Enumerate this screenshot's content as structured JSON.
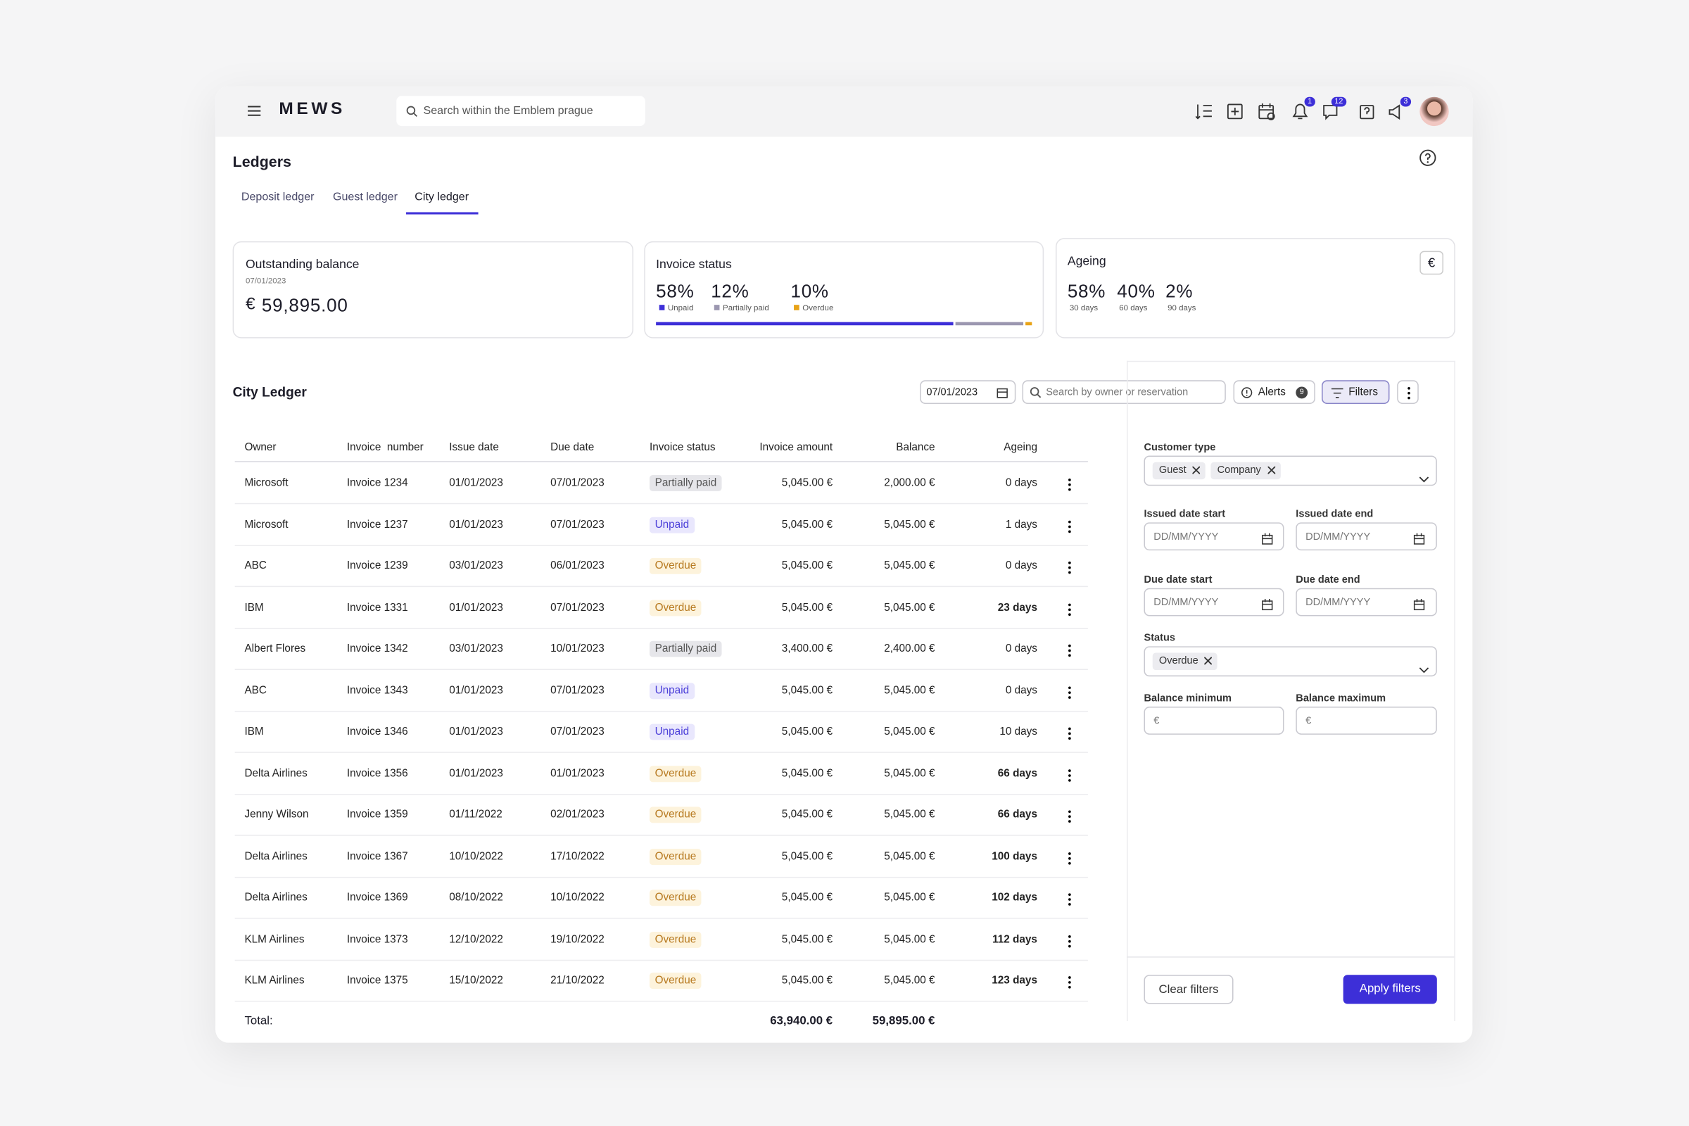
{
  "header": {
    "logo": "MEWS",
    "search_placeholder": "Search within the Emblem prague",
    "badges": [
      "1",
      "12",
      "3"
    ]
  },
  "page": {
    "title": "Ledgers",
    "tabs": [
      "Deposit ledger",
      "Guest ledger",
      "City ledger"
    ]
  },
  "cards": {
    "outstanding": {
      "title": "Outstanding balance",
      "date": "07/01/2023",
      "currency": "€",
      "amount": "59,895.00"
    },
    "invoice_status": {
      "title": "Invoice status",
      "stats": [
        {
          "value": "58%",
          "label": "Unpaid"
        },
        {
          "value": "12%",
          "label": "Partially paid"
        },
        {
          "value": "10%",
          "label": "Overdue"
        }
      ]
    },
    "ageing": {
      "title": "Ageing",
      "stats": [
        {
          "value": "58%",
          "label": "30 days"
        },
        {
          "value": "40%",
          "label": "60 days"
        },
        {
          "value": "2%",
          "label": "90 days"
        }
      ]
    }
  },
  "ledger": {
    "title": "City Ledger",
    "date": "07/01/2023",
    "search_placeholder": "Search by owner or reservation",
    "alerts": "Alerts",
    "alerts_count": "9",
    "filters": "Filters",
    "table": {
      "columns": [
        "Owner",
        "Invoice  number",
        "Issue date",
        "Due date",
        "Invoice status",
        "Invoice amount",
        "Balance",
        "Ageing"
      ],
      "rows": [
        [
          "Microsoft",
          "Invoice 1234",
          "01/01/2023",
          "07/01/2023",
          "Partially paid",
          "5,045.00 €",
          "2,000.00 €",
          "0 days"
        ],
        [
          "Microsoft",
          "Invoice 1237",
          "01/01/2023",
          "07/01/2023",
          "Unpaid",
          "5,045.00 €",
          "5,045.00 €",
          "1 days"
        ],
        [
          "ABC",
          "Invoice 1239",
          "03/01/2023",
          "06/01/2023",
          "Overdue",
          "5,045.00 €",
          "5,045.00 €",
          "0 days"
        ],
        [
          "IBM",
          "Invoice 1331",
          "01/01/2023",
          "07/01/2023",
          "Overdue",
          "5,045.00 €",
          "5,045.00 €",
          "23 days"
        ],
        [
          "Albert Flores",
          "Invoice 1342",
          "03/01/2023",
          "10/01/2023",
          "Partially paid",
          "3,400.00 €",
          "2,400.00 €",
          "0 days"
        ],
        [
          "ABC",
          "Invoice 1343",
          "01/01/2023",
          "07/01/2023",
          "Unpaid",
          "5,045.00 €",
          "5,045.00 €",
          "0 days"
        ],
        [
          "IBM",
          "Invoice 1346",
          "01/01/2023",
          "07/01/2023",
          "Unpaid",
          "5,045.00 €",
          "5,045.00 €",
          "10 days"
        ],
        [
          "Delta Airlines",
          "Invoice 1356",
          "01/01/2023",
          "01/01/2023",
          "Overdue",
          "5,045.00 €",
          "5,045.00 €",
          "66 days"
        ],
        [
          "Jenny Wilson",
          "Invoice 1359",
          "01/11/2022",
          "02/01/2023",
          "Overdue",
          "5,045.00 €",
          "5,045.00 €",
          "66 days"
        ],
        [
          "Delta Airlines",
          "Invoice 1367",
          "10/10/2022",
          "17/10/2022",
          "Overdue",
          "5,045.00 €",
          "5,045.00 €",
          "100 days"
        ],
        [
          "Delta Airlines",
          "Invoice 1369",
          "08/10/2022",
          "10/10/2022",
          "Overdue",
          "5,045.00 €",
          "5,045.00 €",
          "102 days"
        ],
        [
          "KLM Airlines",
          "Invoice 1373",
          "12/10/2022",
          "19/10/2022",
          "Overdue",
          "5,045.00 €",
          "5,045.00 €",
          "112 days"
        ],
        [
          "KLM Airlines",
          "Invoice 1375",
          "15/10/2022",
          "21/10/2022",
          "Overdue",
          "5,045.00 €",
          "5,045.00 €",
          "123 days"
        ]
      ],
      "total": {
        "label": "Total:",
        "amount": "63,940.00 €",
        "balance": "59,895.00 €"
      }
    }
  },
  "filters": {
    "customer_type": {
      "label": "Customer type",
      "chips": [
        "Guest",
        "Company"
      ]
    },
    "issued_start": {
      "label": "Issued date start",
      "placeholder": "DD/MM/YYYY"
    },
    "issued_end": {
      "label": "Issued date end",
      "placeholder": "DD/MM/YYYY"
    },
    "due_start": {
      "label": "Due date start",
      "placeholder": "DD/MM/YYYY"
    },
    "due_end": {
      "label": "Due date end",
      "placeholder": "DD/MM/YYYY"
    },
    "status": {
      "label": "Status",
      "chips": [
        "Overdue"
      ]
    },
    "balance_min": {
      "label": "Balance minimum",
      "prefix": "€"
    },
    "balance_max": {
      "label": "Balance maximum",
      "prefix": "€"
    },
    "clear": "Clear filters",
    "apply": "Apply filters"
  }
}
